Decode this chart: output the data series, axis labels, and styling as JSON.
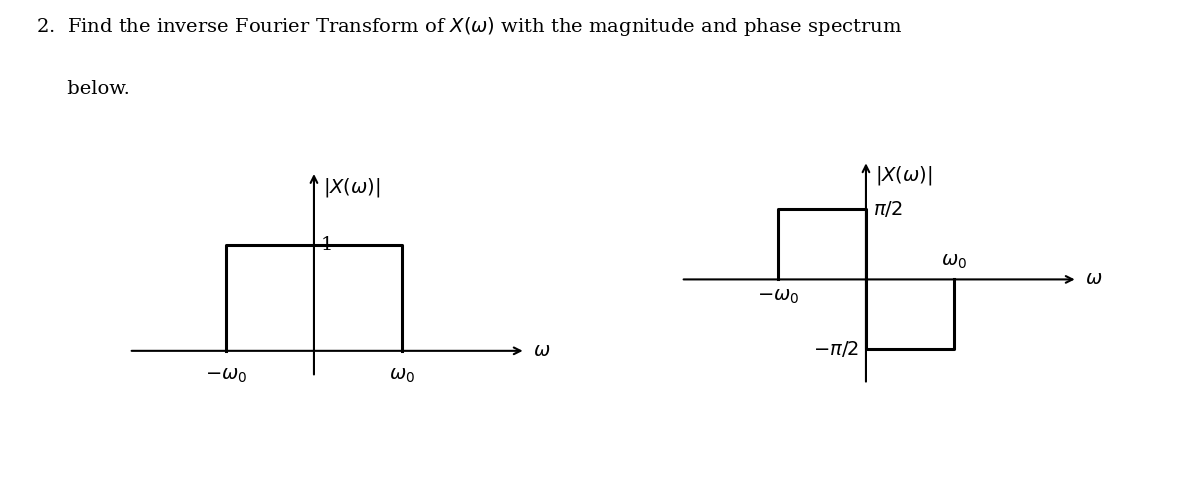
{
  "title_line1": "2.  Find the inverse Fourier Transform of $X(\\omega)$ with the magnitude and phase spectrum",
  "title_line2": "     below.",
  "left_ylabel": "$|X(\\omega)|$",
  "right_ylabel": "$|X(\\omega)|$",
  "xlabel": "$\\omega$",
  "left_height_label": "1",
  "right_pos_label": "$\\pi/2$",
  "right_neg_label": "$-\\pi/2$",
  "left_neg_x_label": "$-\\omega_0$",
  "left_pos_x_label": "$\\omega_0$",
  "right_neg_x_label": "$-\\omega_0$",
  "right_pos_x_label": "$\\omega_0$",
  "bg_color": "#ffffff",
  "rect_color": "#000000",
  "axis_color": "#000000",
  "font_size": 14
}
